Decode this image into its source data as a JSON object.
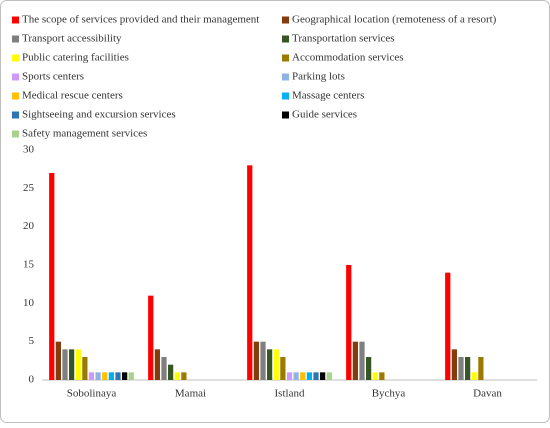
{
  "chart_data": {
    "type": "bar",
    "categories": [
      "Sobolinaya",
      "Mamai",
      "Istland",
      "Bychya",
      "Davan"
    ],
    "series": [
      {
        "name": "The scope of services provided and their management",
        "color": "#ff0000",
        "values": [
          27,
          11,
          28,
          15,
          14
        ]
      },
      {
        "name": "Geographical location (remoteness of a resort)",
        "color": "#843c0c",
        "values": [
          5,
          4,
          5,
          5,
          4
        ]
      },
      {
        "name": "Transport accessibility",
        "color": "#7f7f7f",
        "values": [
          4,
          3,
          5,
          5,
          3
        ]
      },
      {
        "name": "Transportation services",
        "color": "#375623",
        "values": [
          4,
          2,
          4,
          3,
          3
        ]
      },
      {
        "name": "Public catering facilities",
        "color": "#ffff00",
        "values": [
          4,
          1,
          4,
          1,
          1
        ]
      },
      {
        "name": "Accommodation services",
        "color": "#9c7a00",
        "values": [
          3,
          1,
          3,
          1,
          3
        ]
      },
      {
        "name": "Sports centers",
        "color": "#cc99ff",
        "values": [
          1,
          0,
          1,
          0,
          0
        ]
      },
      {
        "name": "Parking lots",
        "color": "#8eb4e3",
        "values": [
          1,
          0,
          1,
          0,
          0
        ]
      },
      {
        "name": "Medical rescue centers",
        "color": "#ffc000",
        "values": [
          1,
          0,
          1,
          0,
          0
        ]
      },
      {
        "name": "Massage centers",
        "color": "#00b0f0",
        "values": [
          1,
          0,
          1,
          0,
          0
        ]
      },
      {
        "name": "Sightseeing and excursion services",
        "color": "#2e75b6",
        "values": [
          1,
          0,
          1,
          0,
          0
        ]
      },
      {
        "name": "Guide services",
        "color": "#000000",
        "values": [
          1,
          0,
          1,
          0,
          0
        ]
      },
      {
        "name": "Safety management services",
        "color": "#a9d18e",
        "values": [
          1,
          0,
          1,
          0,
          0
        ]
      }
    ],
    "ylim": [
      0,
      30
    ],
    "yticks": [
      0,
      5,
      10,
      15,
      20,
      25,
      30
    ],
    "grid": false,
    "legend": "top"
  }
}
